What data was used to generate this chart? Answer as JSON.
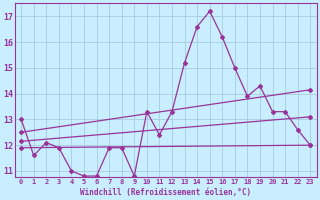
{
  "xlabel": "Windchill (Refroidissement éolien,°C)",
  "xlim": [
    -0.5,
    23.5
  ],
  "ylim": [
    10.75,
    17.5
  ],
  "yticks": [
    11,
    12,
    13,
    14,
    15,
    16,
    17
  ],
  "xticks": [
    0,
    1,
    2,
    3,
    4,
    5,
    6,
    7,
    8,
    9,
    10,
    11,
    12,
    13,
    14,
    15,
    16,
    17,
    18,
    19,
    20,
    21,
    22,
    23
  ],
  "background_color": "#c8eeff",
  "grid_color": "#aaccdd",
  "line_color": "#993399",
  "curve1_x": [
    0,
    1,
    2,
    3,
    4,
    5,
    6,
    7,
    8,
    9,
    10,
    11,
    12,
    13,
    14,
    15,
    16,
    17,
    18,
    19,
    20,
    21,
    22,
    23
  ],
  "curve1_y": [
    13.0,
    11.6,
    12.1,
    11.9,
    11.0,
    10.8,
    10.8,
    11.9,
    11.9,
    10.8,
    13.3,
    12.4,
    13.3,
    15.2,
    16.6,
    17.2,
    16.2,
    15.0,
    13.9,
    14.3,
    13.3,
    13.3,
    12.6,
    12.0
  ],
  "curve2_x": [
    0,
    23
  ],
  "curve2_y": [
    11.9,
    12.0
  ],
  "curve3_x": [
    0,
    23
  ],
  "curve3_y": [
    12.15,
    13.1
  ],
  "curve4_x": [
    0,
    23
  ],
  "curve4_y": [
    12.5,
    14.15
  ]
}
